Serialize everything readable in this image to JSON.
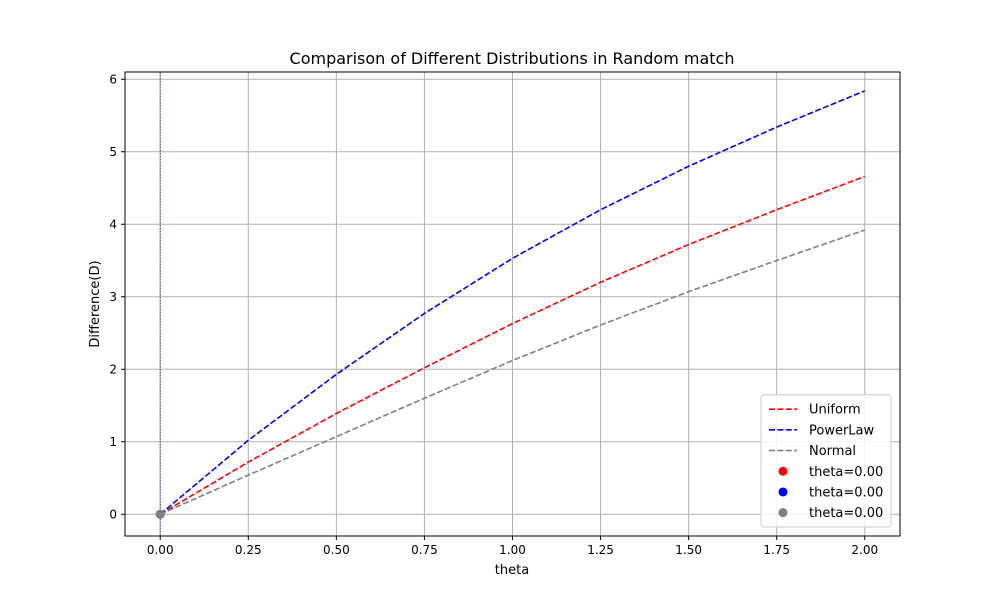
{
  "chart_data": {
    "type": "line",
    "title": "Comparison of Different Distributions in Random match",
    "xlabel": "theta",
    "ylabel": "Difference(D)",
    "xlim": [
      -0.1,
      2.1
    ],
    "ylim": [
      -0.3,
      6.1
    ],
    "xticks": [
      0.0,
      0.25,
      0.5,
      0.75,
      1.0,
      1.25,
      1.5,
      1.75,
      2.0
    ],
    "xtick_labels": [
      "0.00",
      "0.25",
      "0.50",
      "0.75",
      "1.00",
      "1.25",
      "1.50",
      "1.75",
      "2.00"
    ],
    "yticks": [
      0,
      1,
      2,
      3,
      4,
      5,
      6
    ],
    "ytick_labels": [
      "0",
      "1",
      "2",
      "3",
      "4",
      "5",
      "6"
    ],
    "grid": true,
    "legend_position": "lower-right",
    "x": [
      0.0,
      0.25,
      0.5,
      0.75,
      1.0,
      1.25,
      1.5,
      1.75,
      2.0
    ],
    "series": [
      {
        "name": "Uniform",
        "color": "#ff0000",
        "style": "dashed",
        "values": [
          0.0,
          0.72,
          1.39,
          2.02,
          2.63,
          3.2,
          3.72,
          4.2,
          4.66
        ]
      },
      {
        "name": "PowerLaw",
        "color": "#0000ff",
        "style": "dashed",
        "values": [
          0.0,
          1.02,
          1.93,
          2.77,
          3.53,
          4.2,
          4.8,
          5.34,
          5.84
        ]
      },
      {
        "name": "Normal",
        "color": "#808080",
        "style": "dashed",
        "values": [
          0.0,
          0.54,
          1.07,
          1.6,
          2.12,
          2.61,
          3.07,
          3.5,
          3.92
        ]
      }
    ],
    "markers": [
      {
        "name": "theta=0.00",
        "color": "#ff0000",
        "x": 0.0,
        "y": 0.0
      },
      {
        "name": "theta=0.00",
        "color": "#0000ff",
        "x": 0.0,
        "y": 0.0
      },
      {
        "name": "theta=0.00",
        "color": "#808080",
        "x": 0.0,
        "y": 0.0
      }
    ],
    "vlines": [
      {
        "x": 0.0,
        "color": "#ff0000",
        "style": "dotted"
      },
      {
        "x": 0.0,
        "color": "#0000ff",
        "style": "dotted"
      },
      {
        "x": 0.0,
        "color": "#808080",
        "style": "dotted"
      }
    ]
  }
}
